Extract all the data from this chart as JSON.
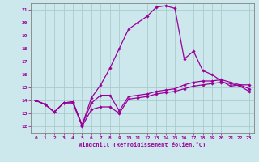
{
  "xlabel": "Windchill (Refroidissement éolien,°C)",
  "ylabel": "",
  "background_color": "#cce8ec",
  "grid_color": "#aacccc",
  "line_color": "#990099",
  "spine_color": "#808080",
  "xlim": [
    -0.5,
    23.5
  ],
  "ylim": [
    11.5,
    21.5
  ],
  "xticks": [
    0,
    1,
    2,
    3,
    4,
    5,
    6,
    7,
    8,
    9,
    10,
    11,
    12,
    13,
    14,
    15,
    16,
    17,
    18,
    19,
    20,
    21,
    22,
    23
  ],
  "yticks": [
    12,
    13,
    14,
    15,
    16,
    17,
    18,
    19,
    20,
    21
  ],
  "series": [
    [
      14.0,
      13.7,
      13.1,
      13.8,
      13.8,
      12.0,
      13.3,
      13.5,
      13.5,
      13.0,
      14.1,
      14.2,
      14.3,
      14.5,
      14.6,
      14.7,
      14.9,
      15.1,
      15.2,
      15.3,
      15.4,
      15.3,
      15.1,
      14.7
    ],
    [
      14.0,
      13.7,
      13.1,
      13.8,
      13.9,
      12.1,
      13.8,
      14.4,
      14.4,
      13.2,
      14.3,
      14.4,
      14.5,
      14.7,
      14.8,
      14.9,
      15.2,
      15.4,
      15.5,
      15.5,
      15.6,
      15.4,
      15.2,
      14.9
    ],
    [
      14.0,
      13.7,
      13.1,
      13.8,
      13.9,
      12.1,
      14.2,
      15.2,
      16.5,
      18.0,
      19.5,
      20.0,
      20.5,
      21.2,
      21.3,
      21.1,
      17.2,
      17.8,
      16.3,
      16.0,
      15.5,
      15.1,
      15.2,
      15.2
    ]
  ]
}
